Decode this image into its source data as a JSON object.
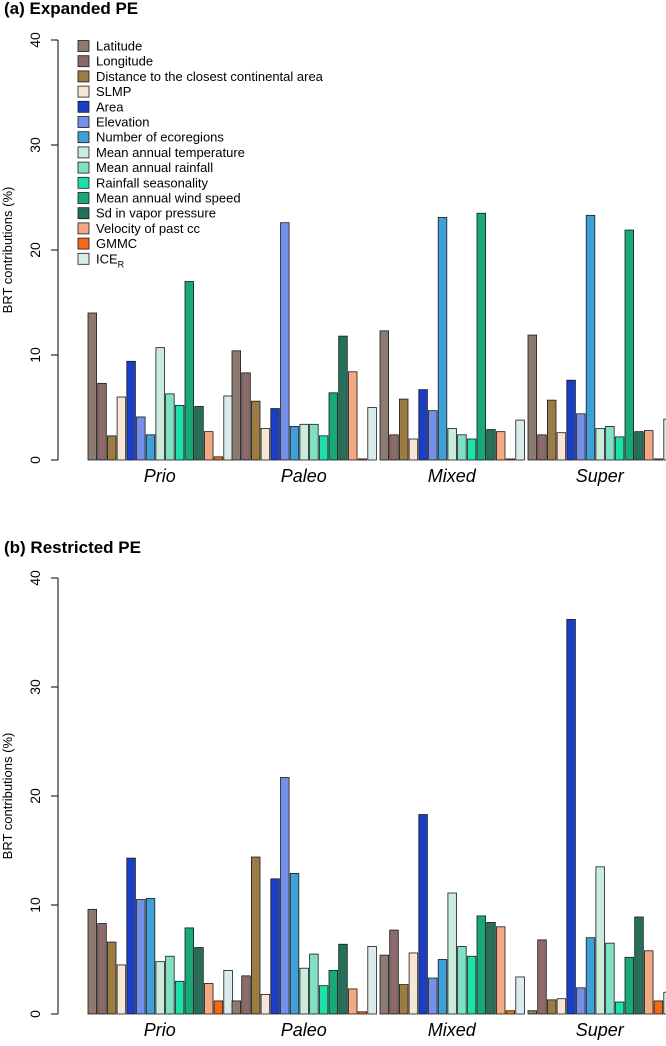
{
  "chart_data": [
    {
      "type": "bar",
      "title": "(a) Expanded PE",
      "ylabel": "BRT contributions (%)",
      "ylim": [
        0,
        40
      ],
      "yticks": [
        0,
        10,
        20,
        30,
        40
      ],
      "categories": [
        "Prio",
        "Paleo",
        "Mixed",
        "Super"
      ],
      "legend": {
        "position": "top-left",
        "entries": [
          {
            "label": "Latitude",
            "sub": ""
          },
          {
            "label": "Longitude",
            "sub": ""
          },
          {
            "label": "Distance to the closest continental area",
            "sub": ""
          },
          {
            "label": "SLMP",
            "sub": ""
          },
          {
            "label": "Area",
            "sub": ""
          },
          {
            "label": "Elevation",
            "sub": ""
          },
          {
            "label": "Number of ecoregions",
            "sub": ""
          },
          {
            "label": "Mean annual temperature",
            "sub": ""
          },
          {
            "label": "Mean annual rainfall",
            "sub": ""
          },
          {
            "label": "Rainfall seasonality",
            "sub": ""
          },
          {
            "label": "Mean annual wind speed",
            "sub": ""
          },
          {
            "label": "Sd in vapor pressure",
            "sub": ""
          },
          {
            "label": "Velocity of past cc",
            "sub": ""
          },
          {
            "label": "GMMC",
            "sub": ""
          },
          {
            "label": "ICE",
            "sub": "R"
          }
        ]
      },
      "series": [
        {
          "name": "Latitude",
          "values": [
            14.0,
            10.4,
            12.3,
            11.9
          ]
        },
        {
          "name": "Longitude",
          "values": [
            7.3,
            8.3,
            2.4,
            2.4
          ]
        },
        {
          "name": "Distance to the closest continental area",
          "values": [
            2.3,
            5.6,
            5.8,
            5.7
          ]
        },
        {
          "name": "SLMP",
          "values": [
            6.0,
            3.0,
            2.0,
            2.6
          ]
        },
        {
          "name": "Area",
          "values": [
            9.4,
            4.9,
            6.7,
            7.6
          ]
        },
        {
          "name": "Elevation",
          "values": [
            4.1,
            22.6,
            4.7,
            4.4
          ]
        },
        {
          "name": "Number of ecoregions",
          "values": [
            2.4,
            3.2,
            23.1,
            23.3
          ]
        },
        {
          "name": "Mean annual temperature",
          "values": [
            10.7,
            3.4,
            3.0,
            3.0
          ]
        },
        {
          "name": "Mean annual rainfall",
          "values": [
            6.3,
            3.4,
            2.4,
            3.2
          ]
        },
        {
          "name": "Rainfall seasonality",
          "values": [
            5.2,
            2.3,
            2.0,
            2.2
          ]
        },
        {
          "name": "Mean annual wind speed",
          "values": [
            17.0,
            6.4,
            23.5,
            21.9
          ]
        },
        {
          "name": "Sd in vapor pressure",
          "values": [
            5.1,
            11.8,
            2.9,
            2.7
          ]
        },
        {
          "name": "Velocity of past cc",
          "values": [
            2.7,
            8.4,
            2.7,
            2.8
          ]
        },
        {
          "name": "GMMC",
          "values": [
            0.3,
            0.1,
            0.1,
            0.1
          ]
        },
        {
          "name": "ICE_R",
          "values": [
            6.1,
            5.0,
            3.8,
            3.9
          ]
        }
      ]
    },
    {
      "type": "bar",
      "title": "(b) Restricted PE",
      "ylabel": "BRT contributions (%)",
      "ylim": [
        0,
        40
      ],
      "yticks": [
        0,
        10,
        20,
        30,
        40
      ],
      "categories": [
        "Prio",
        "Paleo",
        "Mixed",
        "Super"
      ],
      "series": [
        {
          "name": "Latitude",
          "values": [
            9.6,
            1.2,
            5.4,
            0.3
          ]
        },
        {
          "name": "Longitude",
          "values": [
            8.3,
            3.5,
            7.7,
            6.8
          ]
        },
        {
          "name": "Distance to the closest continental area",
          "values": [
            6.6,
            14.4,
            2.7,
            1.3
          ]
        },
        {
          "name": "SLMP",
          "values": [
            4.5,
            1.8,
            5.6,
            1.4
          ]
        },
        {
          "name": "Area",
          "values": [
            14.3,
            12.4,
            18.3,
            36.2
          ]
        },
        {
          "name": "Elevation",
          "values": [
            10.5,
            21.7,
            3.3,
            2.4
          ]
        },
        {
          "name": "Number of ecoregions",
          "values": [
            10.6,
            12.9,
            5.0,
            7.0
          ]
        },
        {
          "name": "Mean annual temperature",
          "values": [
            4.8,
            4.2,
            11.1,
            13.5
          ]
        },
        {
          "name": "Mean annual rainfall",
          "values": [
            5.3,
            5.5,
            6.2,
            6.5
          ]
        },
        {
          "name": "Rainfall seasonality",
          "values": [
            3.0,
            2.6,
            5.3,
            1.1
          ]
        },
        {
          "name": "Mean annual wind speed",
          "values": [
            7.9,
            4.0,
            9.0,
            5.2
          ]
        },
        {
          "name": "Sd in vapor pressure",
          "values": [
            6.1,
            6.4,
            8.4,
            8.9
          ]
        },
        {
          "name": "Velocity of past cc",
          "values": [
            2.8,
            2.3,
            8.0,
            5.8
          ]
        },
        {
          "name": "GMMC",
          "values": [
            1.2,
            0.2,
            0.3,
            1.2
          ]
        },
        {
          "name": "ICE_R",
          "values": [
            4.0,
            6.2,
            3.4,
            2.0
          ]
        }
      ]
    }
  ],
  "colors": [
    "#8c7b70",
    "#8c6a6a",
    "#9c7c45",
    "#f7e6d6",
    "#1a3ec4",
    "#7590e8",
    "#3ea0d6",
    "#c9ecdc",
    "#7fe0c6",
    "#1ee0a8",
    "#19a878",
    "#25705a",
    "#f2a984",
    "#f26a17",
    "#dcecec"
  ]
}
